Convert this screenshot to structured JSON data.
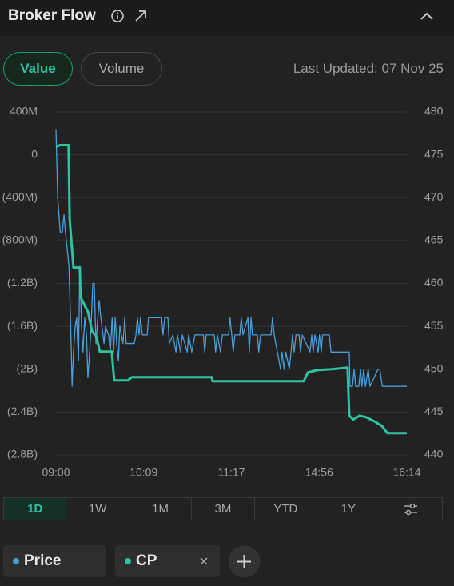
{
  "header": {
    "title": "Broker Flow"
  },
  "tabs": [
    {
      "label": "Value",
      "selected": true
    },
    {
      "label": "Volume",
      "selected": false
    }
  ],
  "last_updated": "Last Updated: 07 Nov 25",
  "chart_data": {
    "type": "line",
    "grid": true,
    "xlim": [
      0,
      100
    ],
    "xticks": [
      {
        "value": 0,
        "label": "09:00"
      },
      {
        "value": 25,
        "label": "10:09"
      },
      {
        "value": 50,
        "label": "11:17"
      },
      {
        "value": 75,
        "label": "14:56"
      },
      {
        "value": 100,
        "label": "16:14"
      }
    ],
    "ylim": [
      -2800,
      400
    ],
    "yticks": [
      {
        "value": 400,
        "label": "400M"
      },
      0,
      {
        "value": -400,
        "label": "(400M)"
      },
      {
        "value": -800,
        "label": "(800M)"
      },
      {
        "value": -1200,
        "label": "(1.2B)"
      },
      {
        "value": -1600,
        "label": "(1.6B)"
      },
      {
        "value": -2000,
        "label": "(2B)"
      },
      {
        "value": -2400,
        "label": "(2.4B)"
      },
      {
        "value": -2800,
        "label": "(2.8B)"
      }
    ],
    "y2lim": [
      440,
      480
    ],
    "y2ticks": [
      480,
      475,
      470,
      465,
      460,
      455,
      450,
      445,
      440
    ],
    "series": [
      {
        "name": "Price",
        "color": "#4a9fd8",
        "axis": "y2",
        "step": false,
        "x": [
          0,
          0.5,
          1.2,
          1.8,
          2.3,
          2.7,
          3.7,
          4.2,
          4.6,
          5.0,
          5.5,
          5.9,
          6.4,
          6.8,
          7.3,
          7.7,
          8.2,
          8.7,
          9.1,
          9.6,
          10.0,
          10.5,
          10.9,
          11.4,
          12.3,
          12.8,
          13.7,
          14.1,
          15.0,
          15.5,
          16.0,
          16.4,
          16.9,
          17.3,
          17.8,
          18.2,
          19.1,
          19.6,
          20.0,
          22.3,
          22.8,
          23.2,
          23.7,
          24.1,
          24.6,
          26.0,
          26.4,
          30.1,
          30.5,
          31.0,
          31.9,
          32.3,
          33.3,
          34.2,
          34.6,
          35.5,
          36.0,
          37.4,
          37.8,
          38.7,
          39.6,
          42.0,
          42.4,
          42.8,
          45.1,
          45.5,
          46.0,
          46.9,
          47.4,
          49.2,
          49.6,
          50.1,
          50.5,
          51.0,
          52.4,
          52.8,
          53.3,
          54.7,
          55.1,
          55.6,
          56.0,
          57.4,
          57.8,
          58.3,
          61.3,
          61.7,
          62.2,
          63.1,
          64.0,
          64.4,
          65.0,
          65.5,
          66.5,
          67.0,
          67.4,
          67.9,
          68.4,
          69.3,
          69.7,
          70.2,
          72.4,
          72.9,
          73.3,
          73.8,
          74.7,
          75.1,
          75.6,
          76.0,
          77.9,
          78.4,
          83.6,
          83.8,
          84.5,
          85.0,
          85.4,
          86.3,
          86.8,
          87.2,
          87.7,
          88.2,
          89.0,
          89.5,
          91.8,
          92.3,
          93.0,
          100
        ],
        "values": [
          478,
          470,
          466,
          466,
          468,
          466,
          462,
          455,
          448,
          452,
          455,
          456,
          451,
          462,
          455,
          452,
          456,
          454,
          449,
          452,
          455,
          460,
          460,
          453,
          458,
          456,
          453,
          455,
          454,
          452,
          456,
          452,
          456,
          453,
          451,
          455,
          453,
          456,
          453,
          453,
          454,
          456,
          454,
          456,
          454,
          454,
          456,
          456,
          454,
          456,
          456,
          453,
          454,
          452,
          454,
          452,
          454,
          452,
          454,
          452,
          454,
          454,
          452,
          454,
          454,
          452,
          454,
          452,
          454,
          454,
          456,
          454,
          452,
          454,
          454,
          456,
          454,
          456,
          452,
          456,
          454,
          454,
          452,
          454,
          454,
          456,
          454,
          452,
          450,
          452,
          450,
          452,
          450,
          452,
          454,
          452,
          454,
          454,
          452,
          454,
          452,
          454,
          452,
          454,
          452,
          454,
          452,
          454,
          454,
          452,
          452,
          448,
          448,
          450,
          448,
          448,
          450,
          448,
          450,
          448,
          450,
          448,
          450,
          450,
          448,
          448
        ]
      },
      {
        "name": "CP",
        "color": "#2ec4a0",
        "axis": "y",
        "x": [
          0,
          1.1,
          3.6,
          3.9,
          5.0,
          6.8,
          7.0,
          9.1,
          10.3,
          11.4,
          12.5,
          15.9,
          16.6,
          20.5,
          21.6,
          44.4,
          44.6,
          70.6,
          71.8,
          74.7,
          78.6,
          83.1,
          83.6,
          84.7,
          86.6,
          88.4,
          91.1,
          92.9,
          94.5,
          100
        ],
        "values": [
          75,
          90,
          90,
          -600,
          -1052,
          -1052,
          -1328,
          -1463,
          -1649,
          -1687,
          -1836,
          -1836,
          -2104,
          -2104,
          -2075,
          -2075,
          -2112,
          -2112,
          -2030,
          -2007,
          -2000,
          -1985,
          -2433,
          -2470,
          -2433,
          -2448,
          -2493,
          -2530,
          -2597,
          -2597
        ]
      }
    ]
  },
  "ranges": [
    {
      "label": "1D",
      "selected": true
    },
    {
      "label": "1W",
      "selected": false
    },
    {
      "label": "1M",
      "selected": false
    },
    {
      "label": "3M",
      "selected": false
    },
    {
      "label": "YTD",
      "selected": false
    },
    {
      "label": "1Y",
      "selected": false
    }
  ]
}
